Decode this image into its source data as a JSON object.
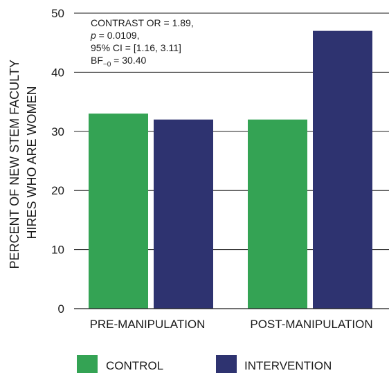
{
  "chart_data": {
    "type": "bar",
    "categories": [
      "PRE-MANIPULATION",
      "POST-MANIPULATION"
    ],
    "series": [
      {
        "name": "CONTROL",
        "values": [
          33,
          32
        ],
        "color": "#34a354"
      },
      {
        "name": "INTERVENTION",
        "values": [
          32,
          47
        ],
        "color": "#2e3370"
      }
    ],
    "ylabel_lines": [
      "PERCENT OF NEW STEM FACULTY",
      "HIRES WHO ARE WOMEN"
    ],
    "xlabel": "",
    "ylim": [
      0,
      50
    ],
    "yticks": [
      0,
      10,
      20,
      30,
      40,
      50
    ],
    "grid": "horizontal",
    "legend_position": "bottom",
    "annotation": {
      "line1": "CONTRAST OR = 1.89,",
      "line2_var": "p",
      "line2_rest": " = 0.0109,",
      "line3": "95% CI = [1.16, 3.11]",
      "line4_base": "BF",
      "line4_sub": "−0",
      "line4_rest": " = 30.40"
    }
  }
}
